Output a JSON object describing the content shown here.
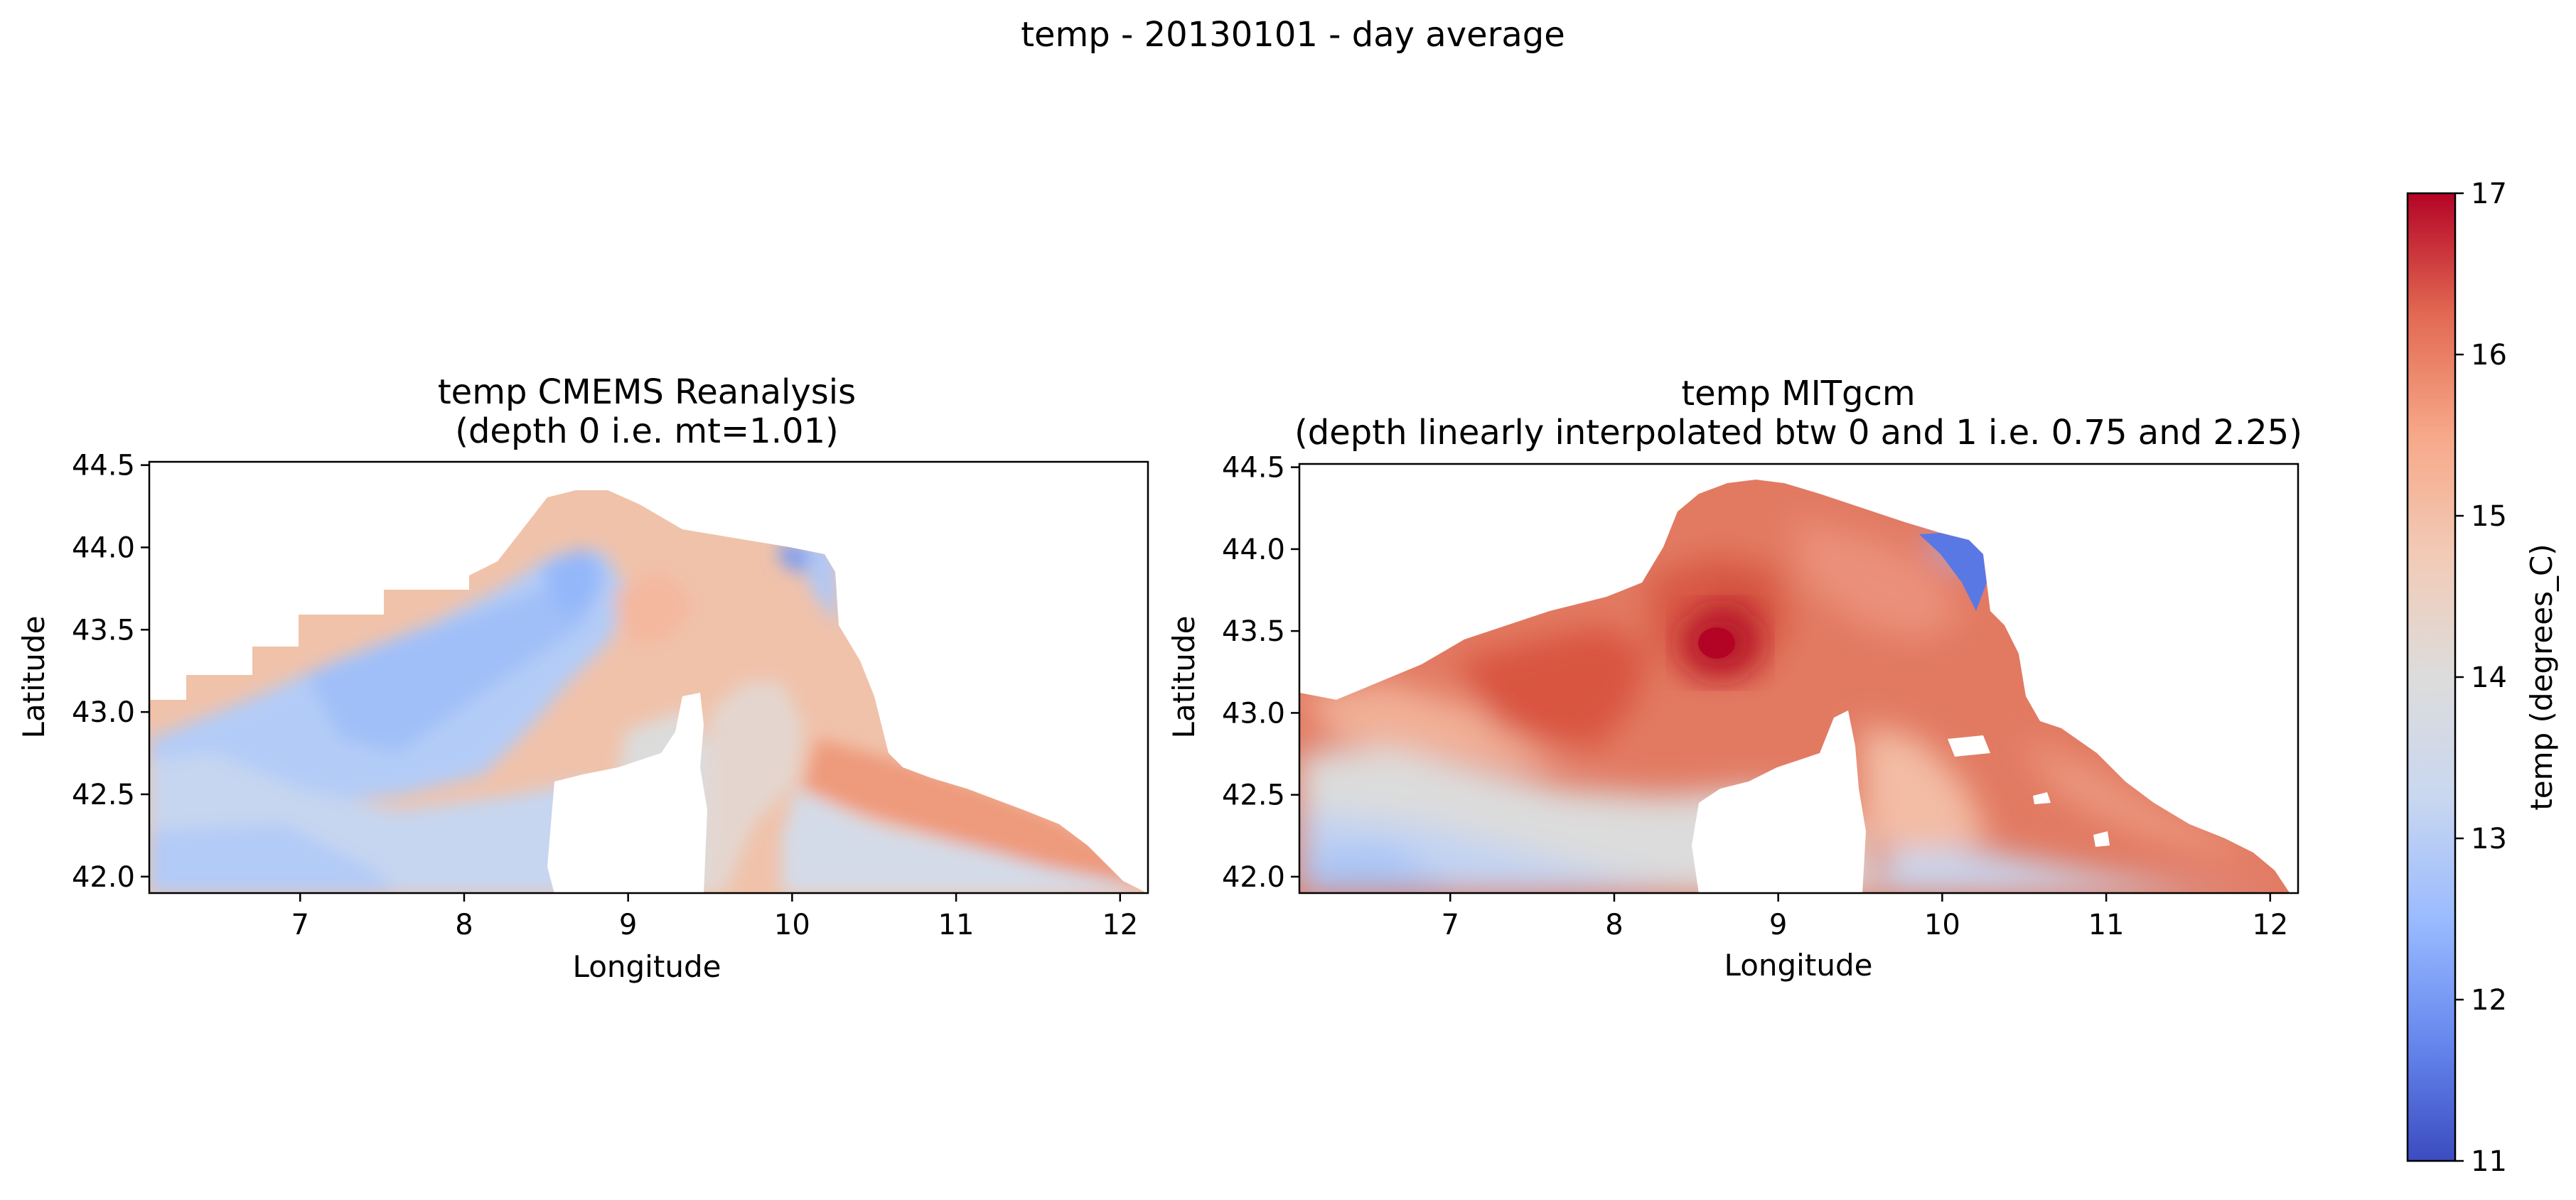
{
  "figure": {
    "suptitle": "temp - 20130101 - day average"
  },
  "chart_data": [
    {
      "type": "heatmap",
      "title_line1": "temp CMEMS Reanalysis",
      "title_line2": "(depth 0 i.e. mt=1.01)",
      "xlabel": "Longitude",
      "ylabel": "Latitude",
      "xlim": [
        6.08,
        12.17
      ],
      "ylim": [
        41.9,
        44.52
      ],
      "xticks": [
        "7",
        "8",
        "9",
        "10",
        "11",
        "12"
      ],
      "yticks": [
        "42.0",
        "42.5",
        "43.0",
        "43.5",
        "44.0",
        "44.5"
      ],
      "style": "blocky",
      "regions": [
        {
          "label": "warm north/east coastal band",
          "temp": 14.8
        },
        {
          "label": "cold western gyre",
          "temp": 13.0
        },
        {
          "label": "south-east warm current",
          "temp": 15.4
        },
        {
          "label": "southern cool strip",
          "temp": 13.5
        }
      ]
    },
    {
      "type": "heatmap",
      "title_line1": "temp MITgcm",
      "title_line2": "(depth linearly interpolated btw 0 and 1 i.e. 0.75 and 2.25)",
      "xlabel": "Longitude",
      "ylabel": "Latitude",
      "xlim": [
        6.08,
        12.17
      ],
      "ylim": [
        41.9,
        44.52
      ],
      "xticks": [
        "7",
        "8",
        "9",
        "10",
        "11",
        "12"
      ],
      "yticks": [
        "42.0",
        "42.5",
        "43.0",
        "43.5",
        "44.0",
        "44.5"
      ],
      "style": "smooth",
      "regions": [
        {
          "label": "central warm eddy core",
          "temp": 16.8
        },
        {
          "label": "broad warm interior",
          "temp": 15.8
        },
        {
          "label": "southern cool strip",
          "temp": 13.5
        },
        {
          "label": "north-east cold coastal patch",
          "temp": 11.5
        }
      ]
    }
  ],
  "colorbar": {
    "label": "temp (degrees_C)",
    "vmin": 11,
    "vmax": 17,
    "ticks": [
      "11",
      "12",
      "13",
      "14",
      "15",
      "16",
      "17"
    ],
    "colors": [
      "#3b4cc0",
      "#6788ee",
      "#9abbff",
      "#c9d7f0",
      "#dddcdc",
      "#f2cbb7",
      "#f7a889",
      "#e26952",
      "#b40426"
    ]
  }
}
